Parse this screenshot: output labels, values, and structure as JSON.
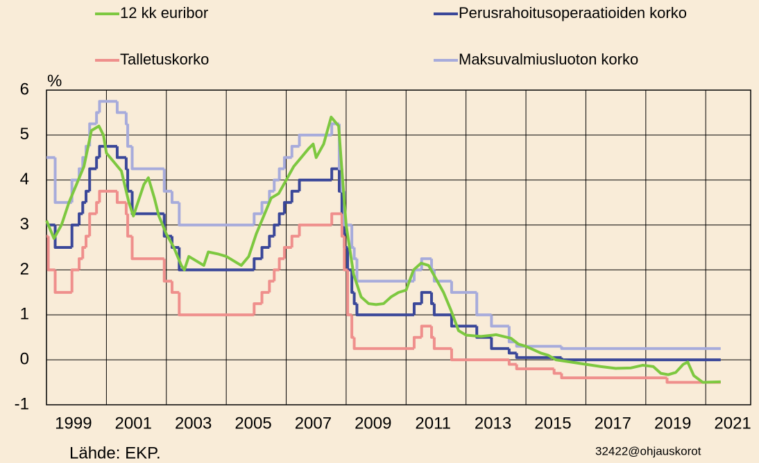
{
  "chart_data": {
    "type": "line",
    "y_unit_label": "%",
    "source": "Lähde: EKP.",
    "code": "32422@ohjauskorot",
    "legend": "top",
    "grid": true,
    "xlim": [
      1999,
      2022.5
    ],
    "xticks": [
      1999,
      2001,
      2003,
      2005,
      2007,
      2009,
      2011,
      2013,
      2015,
      2017,
      2019,
      2021
    ],
    "ylim": [
      -1,
      6
    ],
    "yticks": [
      -1,
      0,
      1,
      2,
      3,
      4,
      5,
      6
    ],
    "series": [
      {
        "name": "12 kk euribor",
        "color": "#7dc840",
        "x": [
          1999.0,
          1999.25,
          1999.5,
          1999.75,
          2000.0,
          2000.25,
          2000.5,
          2000.75,
          2000.9,
          2001.0,
          2001.25,
          2001.5,
          2001.75,
          2001.9,
          2002.0,
          2002.25,
          2002.4,
          2002.6,
          2002.75,
          2003.0,
          2003.25,
          2003.5,
          2003.6,
          2003.75,
          2004.0,
          2004.25,
          2004.4,
          2004.75,
          2005.0,
          2005.25,
          2005.5,
          2005.75,
          2006.0,
          2006.25,
          2006.5,
          2006.75,
          2007.0,
          2007.25,
          2007.5,
          2007.75,
          2007.9,
          2008.0,
          2008.25,
          2008.5,
          2008.75,
          2008.85,
          2009.0,
          2009.25,
          2009.5,
          2009.75,
          2010.0,
          2010.25,
          2010.5,
          2010.75,
          2011.0,
          2011.25,
          2011.5,
          2011.75,
          2012.0,
          2012.25,
          2012.5,
          2012.75,
          2013.0,
          2013.5,
          2013.9,
          2014.0,
          2014.5,
          2014.75,
          2015.0,
          2015.5,
          2015.75,
          2016.0,
          2016.5,
          2017.0,
          2017.5,
          2018.0,
          2018.5,
          2018.9,
          2019.25,
          2019.5,
          2019.75,
          2020.0,
          2020.25,
          2020.4,
          2020.6,
          2020.9,
          2021.5
        ],
        "values": [
          3.1,
          2.7,
          3.0,
          3.5,
          3.9,
          4.3,
          5.1,
          5.2,
          5.0,
          4.6,
          4.4,
          4.2,
          3.5,
          3.2,
          3.4,
          3.9,
          4.05,
          3.6,
          3.2,
          2.8,
          2.5,
          2.1,
          2.0,
          2.3,
          2.2,
          2.1,
          2.4,
          2.35,
          2.3,
          2.2,
          2.1,
          2.3,
          2.8,
          3.2,
          3.6,
          3.7,
          4.0,
          4.3,
          4.5,
          4.7,
          4.8,
          4.5,
          4.8,
          5.4,
          5.2,
          4.3,
          3.0,
          1.9,
          1.4,
          1.25,
          1.23,
          1.25,
          1.4,
          1.5,
          1.55,
          2.0,
          2.15,
          2.1,
          1.8,
          1.5,
          1.1,
          0.65,
          0.55,
          0.52,
          0.55,
          0.56,
          0.48,
          0.35,
          0.3,
          0.15,
          0.1,
          0.0,
          -0.05,
          -0.1,
          -0.15,
          -0.19,
          -0.18,
          -0.12,
          -0.15,
          -0.3,
          -0.33,
          -0.28,
          -0.1,
          -0.05,
          -0.35,
          -0.5,
          -0.49
        ]
      },
      {
        "name": "Perusrahoitusoperaatioiden korko",
        "color": "#3a4799",
        "step": true,
        "x": [
          1999.0,
          1999.29,
          1999.85,
          2000.09,
          2000.21,
          2000.32,
          2000.44,
          2000.67,
          2000.77,
          2001.36,
          2001.66,
          2001.71,
          2001.86,
          2002.93,
          2003.19,
          2003.43,
          2005.93,
          2006.19,
          2006.44,
          2006.6,
          2006.77,
          2006.94,
          2007.19,
          2007.44,
          2008.52,
          2008.77,
          2008.86,
          2008.94,
          2009.05,
          2009.19,
          2009.27,
          2009.36,
          2011.27,
          2011.52,
          2011.85,
          2011.94,
          2012.52,
          2013.36,
          2013.85,
          2014.44,
          2014.69,
          2016.19,
          2021.5
        ],
        "values": [
          3.0,
          2.5,
          3.0,
          3.25,
          3.5,
          3.75,
          4.25,
          4.5,
          4.75,
          4.5,
          4.25,
          3.75,
          3.25,
          2.75,
          2.5,
          2.0,
          2.25,
          2.5,
          2.75,
          3.0,
          3.25,
          3.5,
          3.75,
          4.0,
          4.25,
          3.75,
          3.25,
          2.5,
          2.0,
          1.5,
          1.25,
          1.0,
          1.25,
          1.5,
          1.25,
          1.0,
          0.75,
          0.5,
          0.25,
          0.15,
          0.05,
          0.0,
          0.0
        ]
      },
      {
        "name": "Talletuskorko",
        "color": "#ef8f8c",
        "step": true,
        "x": [
          1999.0,
          1999.06,
          1999.29,
          1999.85,
          2000.09,
          2000.21,
          2000.32,
          2000.44,
          2000.67,
          2000.77,
          2001.36,
          2001.66,
          2001.71,
          2001.86,
          2002.93,
          2003.19,
          2003.43,
          2005.93,
          2006.19,
          2006.44,
          2006.6,
          2006.77,
          2006.94,
          2007.19,
          2007.44,
          2008.52,
          2008.86,
          2008.94,
          2009.05,
          2009.19,
          2009.27,
          2011.27,
          2011.52,
          2011.85,
          2011.94,
          2012.52,
          2014.44,
          2014.69,
          2015.94,
          2016.19,
          2019.71,
          2021.5
        ],
        "values": [
          2.75,
          2.0,
          1.5,
          2.0,
          2.25,
          2.5,
          2.75,
          3.25,
          3.5,
          3.75,
          3.5,
          3.25,
          2.75,
          2.25,
          1.75,
          1.5,
          1.0,
          1.25,
          1.5,
          1.75,
          2.0,
          2.25,
          2.5,
          2.75,
          3.0,
          3.25,
          2.75,
          2.0,
          1.0,
          0.5,
          0.25,
          0.5,
          0.75,
          0.5,
          0.25,
          0.0,
          -0.1,
          -0.2,
          -0.3,
          -0.4,
          -0.5,
          -0.5
        ]
      },
      {
        "name": "Maksuvalmiusluoton korko",
        "color": "#a7abdb",
        "step": true,
        "x": [
          1999.0,
          1999.29,
          1999.85,
          2000.09,
          2000.21,
          2000.32,
          2000.44,
          2000.67,
          2000.77,
          2001.36,
          2001.66,
          2001.71,
          2001.86,
          2002.93,
          2003.19,
          2003.43,
          2005.93,
          2006.19,
          2006.44,
          2006.6,
          2006.77,
          2006.94,
          2007.19,
          2007.44,
          2008.52,
          2008.77,
          2008.86,
          2008.94,
          2009.19,
          2009.27,
          2009.36,
          2011.27,
          2011.52,
          2011.85,
          2011.94,
          2012.52,
          2013.36,
          2013.85,
          2014.44,
          2014.69,
          2016.19,
          2021.5
        ],
        "values": [
          4.5,
          3.5,
          4.0,
          4.25,
          4.5,
          4.75,
          5.25,
          5.5,
          5.75,
          5.5,
          5.25,
          4.75,
          4.25,
          3.75,
          3.5,
          3.0,
          3.25,
          3.5,
          3.75,
          4.0,
          4.25,
          4.5,
          4.75,
          5.0,
          5.25,
          4.25,
          3.75,
          3.0,
          2.5,
          2.25,
          1.75,
          2.0,
          2.25,
          2.0,
          1.75,
          1.5,
          1.0,
          0.75,
          0.4,
          0.3,
          0.25,
          0.25
        ]
      }
    ]
  }
}
